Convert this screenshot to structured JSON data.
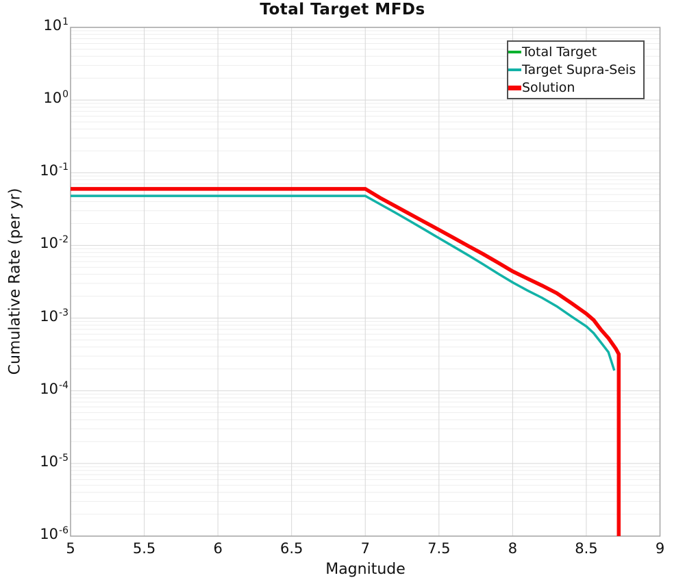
{
  "chart_data": {
    "type": "line",
    "title": "Total Target MFDs",
    "xlabel": "Magnitude",
    "ylabel": "Cumulative Rate (per yr)",
    "xlim": [
      5,
      9
    ],
    "ylim": [
      1e-06,
      10
    ],
    "yscale": "log",
    "grid": true,
    "legend_position": "top-right",
    "x_ticks": [
      {
        "label": "5",
        "value": 5
      },
      {
        "label": "5.5",
        "value": 5.5
      },
      {
        "label": "6",
        "value": 6
      },
      {
        "label": "6.5",
        "value": 6.5
      },
      {
        "label": "7",
        "value": 7
      },
      {
        "label": "7.5",
        "value": 7.5
      },
      {
        "label": "8",
        "value": 8
      },
      {
        "label": "8.5",
        "value": 8.5
      },
      {
        "label": "9",
        "value": 9
      }
    ],
    "y_tick_exponents": [
      1,
      0,
      -1,
      -2,
      -3,
      -4,
      -5,
      -6
    ],
    "series": [
      {
        "name": "Total Target",
        "color": "#0cb22f",
        "stroke_width": 3.5,
        "points": [
          [
            5.0,
            0.06
          ],
          [
            7.0,
            0.06
          ],
          [
            7.1,
            0.0452
          ],
          [
            7.2,
            0.0351
          ],
          [
            7.3,
            0.0272
          ],
          [
            7.4,
            0.0211
          ],
          [
            7.5,
            0.0164
          ],
          [
            7.6,
            0.0127
          ],
          [
            7.7,
            0.0098
          ],
          [
            7.8,
            0.0076
          ],
          [
            7.9,
            0.0058
          ],
          [
            8.0,
            0.0044
          ],
          [
            8.1,
            0.0035
          ],
          [
            8.2,
            0.0028
          ],
          [
            8.3,
            0.0022
          ],
          [
            8.4,
            0.0016
          ],
          [
            8.5,
            0.00115
          ],
          [
            8.55,
            0.00094
          ],
          [
            8.6,
            0.00069
          ],
          [
            8.65,
            0.00053
          ],
          [
            8.7,
            0.00038
          ],
          [
            8.72,
            0.00032
          ],
          [
            8.72,
            1e-06
          ]
        ]
      },
      {
        "name": "Target Supra-Seis",
        "color": "#12b2a7",
        "stroke_width": 3.5,
        "points": [
          [
            5.0,
            0.048
          ],
          [
            7.0,
            0.048
          ],
          [
            7.1,
            0.037
          ],
          [
            7.2,
            0.0285
          ],
          [
            7.3,
            0.0218
          ],
          [
            7.4,
            0.0166
          ],
          [
            7.5,
            0.0126
          ],
          [
            7.6,
            0.0096
          ],
          [
            7.7,
            0.0073
          ],
          [
            7.8,
            0.0055
          ],
          [
            7.9,
            0.0041
          ],
          [
            8.0,
            0.0031
          ],
          [
            8.1,
            0.0024
          ],
          [
            8.2,
            0.0019
          ],
          [
            8.3,
            0.00145
          ],
          [
            8.4,
            0.00105
          ],
          [
            8.5,
            0.00077
          ],
          [
            8.55,
            0.00062
          ],
          [
            8.6,
            0.00046
          ],
          [
            8.65,
            0.00034
          ],
          [
            8.69,
            0.00019
          ]
        ]
      },
      {
        "name": "Solution",
        "color": "#f80404",
        "stroke_width": 5.5,
        "points": [
          [
            5.0,
            0.06
          ],
          [
            7.0,
            0.06
          ],
          [
            7.1,
            0.0452
          ],
          [
            7.2,
            0.0351
          ],
          [
            7.3,
            0.0272
          ],
          [
            7.4,
            0.0211
          ],
          [
            7.5,
            0.0164
          ],
          [
            7.6,
            0.0127
          ],
          [
            7.7,
            0.0098
          ],
          [
            7.8,
            0.0076
          ],
          [
            7.9,
            0.0058
          ],
          [
            8.0,
            0.0044
          ],
          [
            8.1,
            0.0035
          ],
          [
            8.2,
            0.0028
          ],
          [
            8.3,
            0.0022
          ],
          [
            8.4,
            0.0016
          ],
          [
            8.5,
            0.00115
          ],
          [
            8.55,
            0.00094
          ],
          [
            8.6,
            0.00069
          ],
          [
            8.65,
            0.00053
          ],
          [
            8.7,
            0.00038
          ],
          [
            8.72,
            0.00032
          ],
          [
            8.72,
            1e-06
          ]
        ]
      }
    ],
    "style": {
      "frame_color": "#a3a3a3",
      "grid_major_color": "#d7d7d7",
      "grid_minor_color": "#eeeeee",
      "background": "#ffffff"
    }
  }
}
